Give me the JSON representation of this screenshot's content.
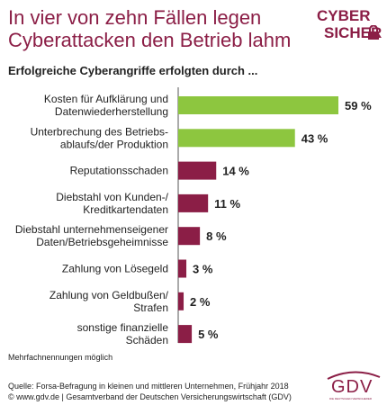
{
  "title": "In vier von zehn Fällen legen Cyberattacken den Betrieb lahm",
  "subtitle": "Erfolgreiche Cyberangriffe erfolgten durch ...",
  "logo": {
    "line1": "CYBER",
    "line2": "SICHER"
  },
  "footnote": "Mehrfachnennungen möglich",
  "source_line1": "Quelle: Forsa-Befragung in kleinen und mittleren Unternehmen, Frühjahr 2018",
  "source_line2": "© www.gdv.de | Gesamtverband der Deutschen Versicherungswirtschaft (GDV)",
  "gdv_logo": {
    "text": "GDV",
    "tagline": "DIE DEUTSCHEN VERSICHERER"
  },
  "colors": {
    "green": "#8dc63f",
    "maroon": "#8b1e46"
  },
  "chart_data": {
    "type": "bar",
    "orientation": "horizontal",
    "categories": [
      [
        "Kosten für Aufklärung und",
        "Datenwiederherstellung"
      ],
      [
        "Unterbrechung des Betriebs-",
        "ablaufs/der Produktion"
      ],
      [
        "Reputationsschaden"
      ],
      [
        "Diebstahl von Kunden-/",
        "Kreditkartendaten"
      ],
      [
        "Diebstahl unternehmenseigener",
        "Daten/Betriebsgeheimnisse"
      ],
      [
        "Zahlung von Lösegeld"
      ],
      [
        "Zahlung von Geldbußen/",
        "Strafen"
      ],
      [
        "sonstige finanzielle",
        "Schäden"
      ]
    ],
    "values": [
      59,
      43,
      14,
      11,
      8,
      3,
      2,
      5
    ],
    "value_labels": [
      "59 %",
      "43 %",
      "14 %",
      "11 %",
      "8 %",
      "3 %",
      "2 %",
      "5 %"
    ],
    "bar_colors": [
      "#8dc63f",
      "#8dc63f",
      "#8b1e46",
      "#8b1e46",
      "#8b1e46",
      "#8b1e46",
      "#8b1e46",
      "#8b1e46"
    ],
    "xlim": [
      0,
      59
    ],
    "grid": false
  }
}
